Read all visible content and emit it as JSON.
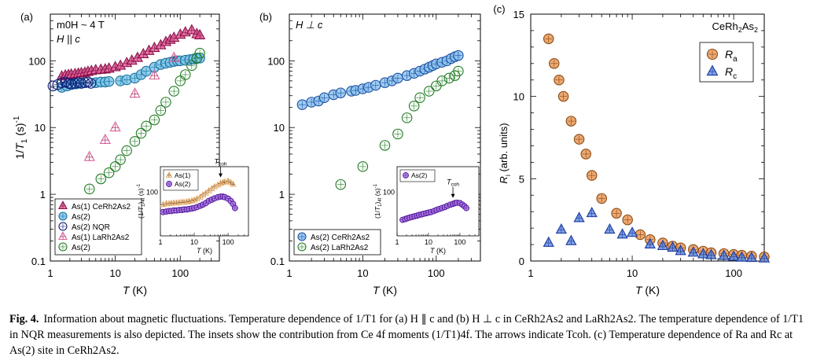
{
  "figure": {
    "caption": {
      "label": "Fig. 4.",
      "text": "Information about magnetic fluctuations. Temperature dependence of 1/T1 for (a) H ∥ c and (b) H ⊥ c in CeRh2As2 and LaRh2As2. The temperature dependence of 1/T1 in NQR measurements is also depicted. The insets show the contribution from Ce 4f moments (1/T1)4f. The arrows indicate Tcoh. (c) Temperature dependence of Ra and Rc at As(2) site in CeRh2As2."
    }
  },
  "colors": {
    "pink": "#e0609a",
    "pink_dark": "#8a1048",
    "cyan": "#7fc8ea",
    "cyan_dark": "#1a6e9e",
    "navy": "#0a1e78",
    "navy_fill": "#b8c6ee",
    "green": "#8fd87a",
    "green_dark": "#1e7a20",
    "orange": "#e8995a",
    "orange_dark": "#8a4a10",
    "blue_tri": "#6a90e0",
    "blue_tri_dark": "#1a3aa0",
    "purple": "#b88cf0",
    "purple_dark": "#5a1ea0",
    "tan": "#e8b070",
    "tan_dark": "#7a4a10"
  },
  "chart_data": [
    {
      "panel": "(a)",
      "type": "scatter",
      "annotation_lines": [
        "m0H ~ 4 T",
        "H || c"
      ],
      "xlabel": "T (K)",
      "ylabel": "1/T1 (s)-1",
      "xscale": "log",
      "yscale": "log",
      "xlim": [
        1,
        400
      ],
      "ylim": [
        0.1,
        500
      ],
      "xticks": [
        "1",
        "10",
        "100"
      ],
      "yticks": [
        "0.1",
        "1",
        "10",
        "100"
      ],
      "legend_position": "bottom-left",
      "series": [
        {
          "name": "As(1) CeRh2As2",
          "marker": "triangle",
          "color": "pink",
          "x": [
            1.5,
            1.7,
            1.9,
            2.1,
            2.4,
            2.7,
            3,
            3.4,
            3.8,
            4.3,
            5,
            6,
            7,
            8,
            10,
            12,
            15,
            18,
            22,
            27,
            33,
            40,
            50,
            60,
            70,
            80,
            100,
            120,
            150,
            180,
            200
          ],
          "y": [
            58,
            60,
            61,
            62,
            63,
            64,
            65,
            66,
            68,
            70,
            72,
            73,
            74,
            76,
            80,
            84,
            92,
            100,
            110,
            125,
            140,
            155,
            170,
            190,
            205,
            220,
            245,
            265,
            285,
            250,
            240
          ]
        },
        {
          "name": "As(2)",
          "marker": "circle",
          "color": "cyan",
          "x": [
            1.5,
            1.8,
            2.1,
            2.5,
            3,
            5,
            6,
            7,
            8,
            12,
            15,
            20,
            25,
            30,
            40,
            50,
            60,
            70,
            80,
            90,
            100,
            120,
            140,
            160,
            180,
            200
          ],
          "y": [
            40,
            42,
            44,
            45,
            46,
            47,
            48,
            48,
            49,
            50,
            52,
            55,
            62,
            70,
            80,
            88,
            92,
            95,
            98,
            100,
            100,
            102,
            104,
            106,
            108,
            110
          ]
        },
        {
          "name": "As(2) NQR",
          "marker": "circle-open",
          "color": "navy",
          "x": [
            1.1,
            1.3,
            1.5,
            1.7,
            1.9,
            2.1,
            2.4,
            2.7,
            3,
            3.4,
            3.8,
            4.2
          ],
          "y": [
            42,
            44,
            47,
            48,
            46,
            45,
            46,
            47,
            46,
            47,
            48,
            46
          ]
        },
        {
          "name": "As(1) LaRh2As2",
          "marker": "triangle-open",
          "color": "pink",
          "x": [
            4,
            7,
            10,
            20,
            40,
            80
          ],
          "y": [
            3.6,
            6.5,
            10,
            32,
            60,
            110
          ]
        },
        {
          "name": "As(2)",
          "marker": "circle-open",
          "color": "green",
          "x": [
            3,
            4,
            6,
            8,
            10,
            12,
            15,
            20,
            25,
            30,
            40,
            50,
            60,
            80,
            100,
            120,
            150,
            180,
            200
          ],
          "y": [
            0.7,
            1.2,
            1.7,
            2.1,
            2.6,
            3.3,
            4.5,
            6.2,
            8.2,
            10.5,
            13,
            18,
            24,
            35,
            50,
            62,
            85,
            110,
            130
          ]
        }
      ],
      "inset": {
        "xlabel": "T (K)",
        "ylabel": "(1/T1)4f (s)-1",
        "xscale": "log",
        "yscale": "log",
        "xticks": [
          "1",
          "10",
          "100"
        ],
        "yticks": [
          "100"
        ],
        "arrow_label": "Tcoh",
        "series": [
          {
            "name": "As(1)",
            "marker": "triangle-open",
            "color": "tan",
            "x": [
              1.2,
              1.5,
              1.8,
              2.1,
              2.5,
              3,
              3.6,
              4.3,
              5,
              6,
              7,
              8.5,
              10,
              12,
              15,
              18,
              22,
              27,
              33,
              40,
              50,
              60,
              70,
              80,
              100,
              120,
              140
            ],
            "y": [
              58,
              60,
              60,
              61,
              62,
              62,
              63,
              64,
              64,
              65,
              66,
              68,
              70,
              74,
              80,
              88,
              95,
              105,
              115,
              125,
              135,
              145,
              150,
              155,
              160,
              150,
              140
            ]
          },
          {
            "name": "As(2)",
            "marker": "circle",
            "color": "purple",
            "x": [
              1.2,
              1.5,
              1.8,
              2.1,
              2.5,
              3,
              3.6,
              4.3,
              5,
              6,
              7,
              8.5,
              10,
              12,
              15,
              18,
              22,
              27,
              33,
              40,
              50,
              60,
              70,
              80,
              100,
              120,
              140,
              160
            ],
            "y": [
              42,
              43,
              44,
              44,
              45,
              45,
              46,
              46,
              47,
              47,
              48,
              49,
              50,
              52,
              55,
              58,
              62,
              68,
              72,
              76,
              80,
              82,
              82,
              80,
              75,
              68,
              60,
              50
            ]
          }
        ]
      }
    },
    {
      "panel": "(b)",
      "type": "scatter",
      "annotation_lines": [
        "H ⊥ c"
      ],
      "xlabel": "T (K)",
      "xscale": "log",
      "yscale": "log",
      "xlim": [
        1,
        400
      ],
      "ylim": [
        0.1,
        500
      ],
      "xticks": [
        "1",
        "10",
        "100"
      ],
      "yticks": [
        "0.1",
        "1",
        "10",
        "100"
      ],
      "legend_position": "bottom-left",
      "series": [
        {
          "name": "As(2) CeRh2As2",
          "marker": "circle",
          "color": "cyan_blue",
          "x": [
            1.5,
            2,
            2.5,
            3,
            4,
            5,
            7,
            8,
            10,
            12,
            15,
            20,
            25,
            30,
            40,
            50,
            60,
            70,
            80,
            90,
            100,
            120,
            140,
            160,
            180,
            200
          ],
          "y": [
            22,
            24,
            25,
            28,
            31,
            33,
            35,
            36,
            38,
            40,
            43,
            47,
            50,
            55,
            60,
            65,
            70,
            75,
            80,
            85,
            90,
            95,
            100,
            108,
            115,
            120
          ]
        },
        {
          "name": "As(2) LaRh2As2",
          "marker": "circle-open",
          "color": "green",
          "x": [
            5,
            10,
            20,
            30,
            40,
            50,
            60,
            80,
            100,
            120,
            150,
            180,
            200
          ],
          "y": [
            1.4,
            2.6,
            5.4,
            8,
            14,
            21,
            28,
            35,
            42,
            50,
            55,
            60,
            70
          ]
        }
      ],
      "inset": {
        "xlabel": "T (K)",
        "ylabel": "(1/T1)4f (s)-1",
        "xscale": "log",
        "yscale": "log",
        "xticks": [
          "1",
          "10",
          "100"
        ],
        "yticks": [
          "100"
        ],
        "arrow_label": "Tcoh",
        "series": [
          {
            "name": "As(2)",
            "marker": "circle",
            "color": "purple",
            "x": [
              1.5,
              1.8,
              2.1,
              2.5,
              3,
              3.6,
              4.3,
              5,
              6,
              7,
              8.5,
              10,
              12,
              15,
              18,
              22,
              27,
              33,
              40,
              50,
              60,
              70,
              80,
              100,
              120,
              140,
              160
            ],
            "y": [
              30,
              31,
              32,
              33,
              34,
              35,
              36,
              37,
              38,
              39,
              40,
              41,
              42,
              44,
              46,
              48,
              50,
              52,
              55,
              58,
              60,
              62,
              63,
              62,
              58,
              54,
              50
            ]
          }
        ]
      }
    },
    {
      "panel": "(c)",
      "type": "scatter",
      "title": "CeRh2As2",
      "xlabel": "T (K)",
      "ylabel": "Ri (arb. units)",
      "xscale": "log",
      "yscale": "linear",
      "xlim": [
        1,
        200
      ],
      "ylim": [
        0,
        15
      ],
      "xticks": [
        "1",
        "10",
        "100"
      ],
      "yticks": [
        "0",
        "5",
        "10",
        "15"
      ],
      "legend_position": "top-right",
      "series": [
        {
          "name": "Ra",
          "marker": "circle",
          "color": "orange",
          "x": [
            1.5,
            1.7,
            1.9,
            2.1,
            2.5,
            3,
            3.5,
            4,
            5,
            7,
            9,
            12,
            15,
            20,
            25,
            30,
            40,
            50,
            60,
            80,
            100,
            120,
            150,
            200
          ],
          "y": [
            13.5,
            12,
            11,
            10,
            8.5,
            7.4,
            6.5,
            5.2,
            3.8,
            2.9,
            2.5,
            1.6,
            1.3,
            1.1,
            0.9,
            0.8,
            0.7,
            0.6,
            0.5,
            0.45,
            0.4,
            0.35,
            0.3,
            0.25
          ]
        },
        {
          "name": "Rc",
          "marker": "triangle",
          "color": "blue_tri",
          "x": [
            1.5,
            2,
            2.5,
            3,
            4,
            6,
            8,
            10,
            15,
            20,
            25,
            30,
            40,
            50,
            60,
            80,
            100,
            120,
            150,
            200
          ],
          "y": [
            1.1,
            1.9,
            1.2,
            2.6,
            2.9,
            1.9,
            1.6,
            1.7,
            1.0,
            0.9,
            0.8,
            0.6,
            0.5,
            0.4,
            0.35,
            0.3,
            0.25,
            0.2,
            0.18,
            0.15
          ]
        }
      ]
    }
  ]
}
